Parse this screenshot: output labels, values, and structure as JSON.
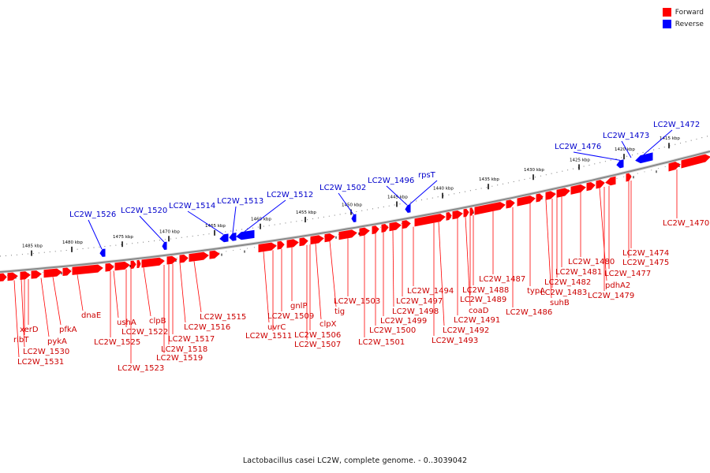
{
  "title": "Lactobacillus casei LC2W, complete genome. - 0..3039042",
  "legend": [
    {
      "label": "Forward",
      "color": "#ff0000"
    },
    {
      "label": "Reverse",
      "color": "#0000ff"
    }
  ],
  "colors": {
    "forward": "#ff0000",
    "reverse": "#0000ff",
    "forward_label": "#cc0000",
    "reverse_label": "#0000cc",
    "backbone": "#888888"
  },
  "scale_ticks": [
    "1485 kbp",
    "1480 kbp",
    "1475 kbp",
    "1470 kbp",
    "1465 kbp",
    "1460 kbp",
    "1455 kbp",
    "1450 kbp",
    "1445 kbp",
    "1440 kbp",
    "1435 kbp",
    "1430 kbp",
    "1425 kbp",
    "1420 kbp",
    "1415 kbp"
  ],
  "reverse_genes": [
    "LC2W_1526",
    "LC2W_1520",
    "LC2W_1514",
    "LC2W_1513",
    "LC2W_1512",
    "LC2W_1502",
    "LC2W_1496",
    "rpsT",
    "LC2W_1476",
    "LC2W_1473",
    "LC2W_1472"
  ],
  "forward_genes": [
    "xerD",
    "ribT",
    "LC2W_1530",
    "LC2W_1531",
    "pykA",
    "pfkA",
    "dnaE",
    "ushA",
    "LC2W_1525",
    "LC2W_1522",
    "LC2W_1523",
    "clpB",
    "LC2W_1517",
    "LC2W_1518",
    "LC2W_1519",
    "LC2W_1516",
    "LC2W_1515",
    "uvrC",
    "LC2W_1511",
    "LC2W_1509",
    "gnlP",
    "LC2W_1506",
    "LC2W_1507",
    "clpX",
    "tig",
    "LC2W_1503",
    "LC2W_1501",
    "LC2W_1500",
    "LC2W_1499",
    "LC2W_1498",
    "LC2W_1497",
    "LC2W_1494",
    "LC2W_1493",
    "LC2W_1492",
    "LC2W_1491",
    "coaD",
    "LC2W_1489",
    "LC2W_1488",
    "LC2W_1487",
    "LC2W_1486",
    "typA",
    "suhB",
    "LC2W_1483",
    "LC2W_1482",
    "LC2W_1481",
    "LC2W_1480",
    "pdhA2",
    "LC2W_1479",
    "LC2W_1477",
    "LC2W_1475",
    "LC2W_1474",
    "LC2W_1470"
  ]
}
